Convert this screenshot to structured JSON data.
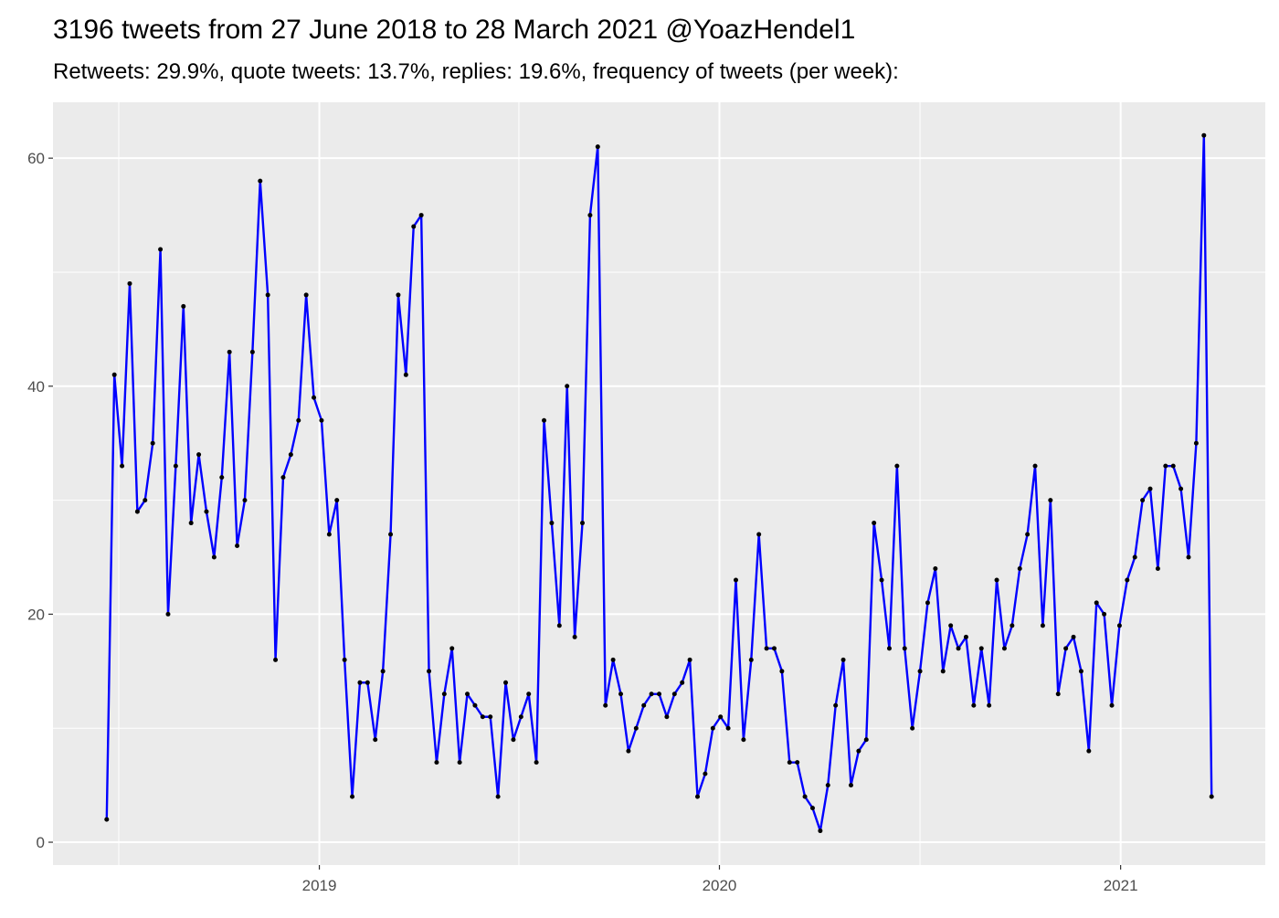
{
  "chart_data": {
    "type": "line",
    "title": "3196 tweets from 27 June 2018 to 28 March 2021 @YoazHendel1",
    "subtitle": "Retweets: 29.9%, quote tweets: 13.7%, replies: 19.6%, frequency of tweets (per week):",
    "xlabel": "",
    "ylabel": "",
    "x_start": "2018-06-21",
    "x_interval_days": 7,
    "xlim": [
      "2018-05-03",
      "2021-05-13"
    ],
    "ylim": [
      -2,
      64.9
    ],
    "x_ticks": [
      {
        "date": "2019-01-01",
        "label": "2019"
      },
      {
        "date": "2020-01-01",
        "label": "2020"
      },
      {
        "date": "2021-01-01",
        "label": "2021"
      }
    ],
    "x_minor_ticks": [
      "2018-07-02",
      "2019-07-02",
      "2020-07-02"
    ],
    "y_ticks": [
      0,
      20,
      40,
      60
    ],
    "y_minor_ticks": [
      10,
      30,
      50
    ],
    "grid": true,
    "series": [
      {
        "name": "tweets per week",
        "color": "#0000ff",
        "point_color": "#000000",
        "values": [
          2,
          41,
          33,
          49,
          29,
          30,
          35,
          52,
          20,
          33,
          47,
          28,
          34,
          29,
          25,
          32,
          43,
          26,
          30,
          43,
          58,
          48,
          16,
          32,
          34,
          37,
          48,
          39,
          37,
          27,
          30,
          16,
          4,
          14,
          14,
          9,
          15,
          27,
          48,
          41,
          54,
          55,
          15,
          7,
          13,
          17,
          7,
          13,
          12,
          11,
          11,
          4,
          14,
          9,
          11,
          13,
          7,
          37,
          28,
          19,
          40,
          18,
          28,
          55,
          61,
          12,
          16,
          13,
          8,
          10,
          12,
          13,
          13,
          11,
          13,
          14,
          16,
          4,
          6,
          10,
          11,
          10,
          23,
          9,
          16,
          27,
          17,
          17,
          15,
          7,
          7,
          4,
          3,
          1,
          5,
          12,
          16,
          5,
          8,
          9,
          28,
          23,
          17,
          33,
          17,
          10,
          15,
          21,
          24,
          15,
          19,
          17,
          18,
          12,
          17,
          12,
          23,
          17,
          19,
          24,
          27,
          33,
          19,
          30,
          13,
          17,
          18,
          15,
          8,
          21,
          20,
          12,
          19,
          23,
          25,
          30,
          31,
          24,
          33,
          33,
          31,
          25,
          35,
          62,
          4
        ]
      }
    ],
    "colors": {
      "panel": "#ebebeb",
      "grid": "#ffffff"
    }
  }
}
